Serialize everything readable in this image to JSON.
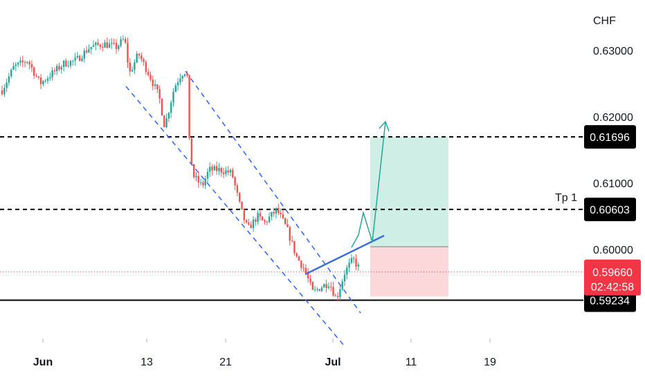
{
  "chart_data": {
    "type": "candlestick",
    "currency": "CHF",
    "y_ticks": [
      "0.63000",
      "0.62000",
      "0.61000",
      "0.60000"
    ],
    "y_tick_values": [
      0.63,
      0.62,
      0.61,
      0.6
    ],
    "x_ticks": [
      {
        "label": "Jun",
        "bold": true
      },
      {
        "label": "13",
        "bold": false
      },
      {
        "label": "21",
        "bold": false
      },
      {
        "label": "Jul",
        "bold": true
      },
      {
        "label": "11",
        "bold": false
      },
      {
        "label": "19",
        "bold": false
      }
    ],
    "price_range": [
      0.5872,
      0.6353
    ],
    "levels": [
      {
        "value": 0.61696,
        "label": "0.61696",
        "style": "dashed"
      },
      {
        "value": 0.60603,
        "label": "0.60603",
        "style": "dashed",
        "annotation": "Tp 1"
      },
      {
        "value": 0.59234,
        "label": "0.59234",
        "style": "solid"
      }
    ],
    "current_price": {
      "value": 0.5966,
      "label": "0.59660",
      "countdown": "02:42:58"
    },
    "trade_setup": {
      "entry": 0.6004,
      "target": 0.61696,
      "stop": 0.5929
    },
    "colors": {
      "up": "#26a69a",
      "down": "#ef5350",
      "channel": "#2962ff",
      "trendline": "#3b6fd6",
      "projection": "#26a69a",
      "profit_zone": "#cfeee6",
      "loss_zone": "#fdd8db",
      "current_price": "#f23645",
      "badge": "#000000"
    }
  }
}
